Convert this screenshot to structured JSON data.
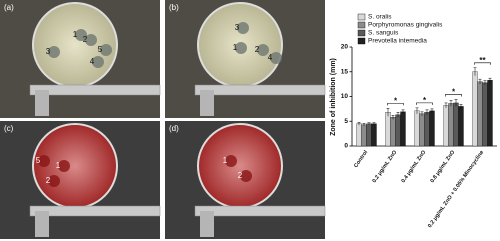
{
  "panels": [
    {
      "label": "(a)",
      "spots": [
        1,
        2,
        3,
        4,
        5
      ]
    },
    {
      "label": "(b)",
      "spots": [
        3,
        2,
        1,
        4
      ]
    },
    {
      "label": "(c)",
      "spots": [
        1,
        5,
        2
      ]
    },
    {
      "label": "(d)",
      "spots": [
        1,
        2
      ]
    }
  ],
  "chart_data": {
    "type": "bar",
    "y_label": "Zone of inhibition (mm)",
    "categories": [
      "Control",
      "0.2 μg/mL ZnO",
      "0.4 μg/mL ZnO",
      "0.8 μg/mL ZnO",
      "0.2 μg/mL ZnO + 0.05% Minocycline"
    ],
    "series": [
      {
        "name": "S. oralis",
        "color": "#d9d9d9",
        "values": [
          4.5,
          6.8,
          7.1,
          8.2,
          15.0
        ],
        "errors": [
          0.3,
          0.8,
          0.6,
          0.5,
          0.8
        ]
      },
      {
        "name": "Porphyromonas gingivalis",
        "color": "#8c8c8c",
        "values": [
          4.3,
          5.8,
          6.5,
          8.6,
          13.0
        ],
        "errors": [
          0.3,
          0.4,
          0.4,
          0.6,
          0.5
        ]
      },
      {
        "name": "S. sanguis",
        "color": "#5a5a5a",
        "values": [
          4.5,
          6.3,
          6.8,
          8.7,
          12.8
        ],
        "errors": [
          0.2,
          0.5,
          0.5,
          0.7,
          0.4
        ]
      },
      {
        "name": "Prevotella intemedia",
        "color": "#222222",
        "values": [
          4.5,
          6.9,
          7.1,
          8.0,
          13.3
        ],
        "errors": [
          0.2,
          0.4,
          0.4,
          0.4,
          0.4
        ]
      }
    ],
    "significance": [
      null,
      "*",
      "*",
      "*",
      "**"
    ],
    "ylim": [
      0,
      20
    ],
    "yticks": [
      0,
      5,
      10,
      15,
      20
    ]
  }
}
